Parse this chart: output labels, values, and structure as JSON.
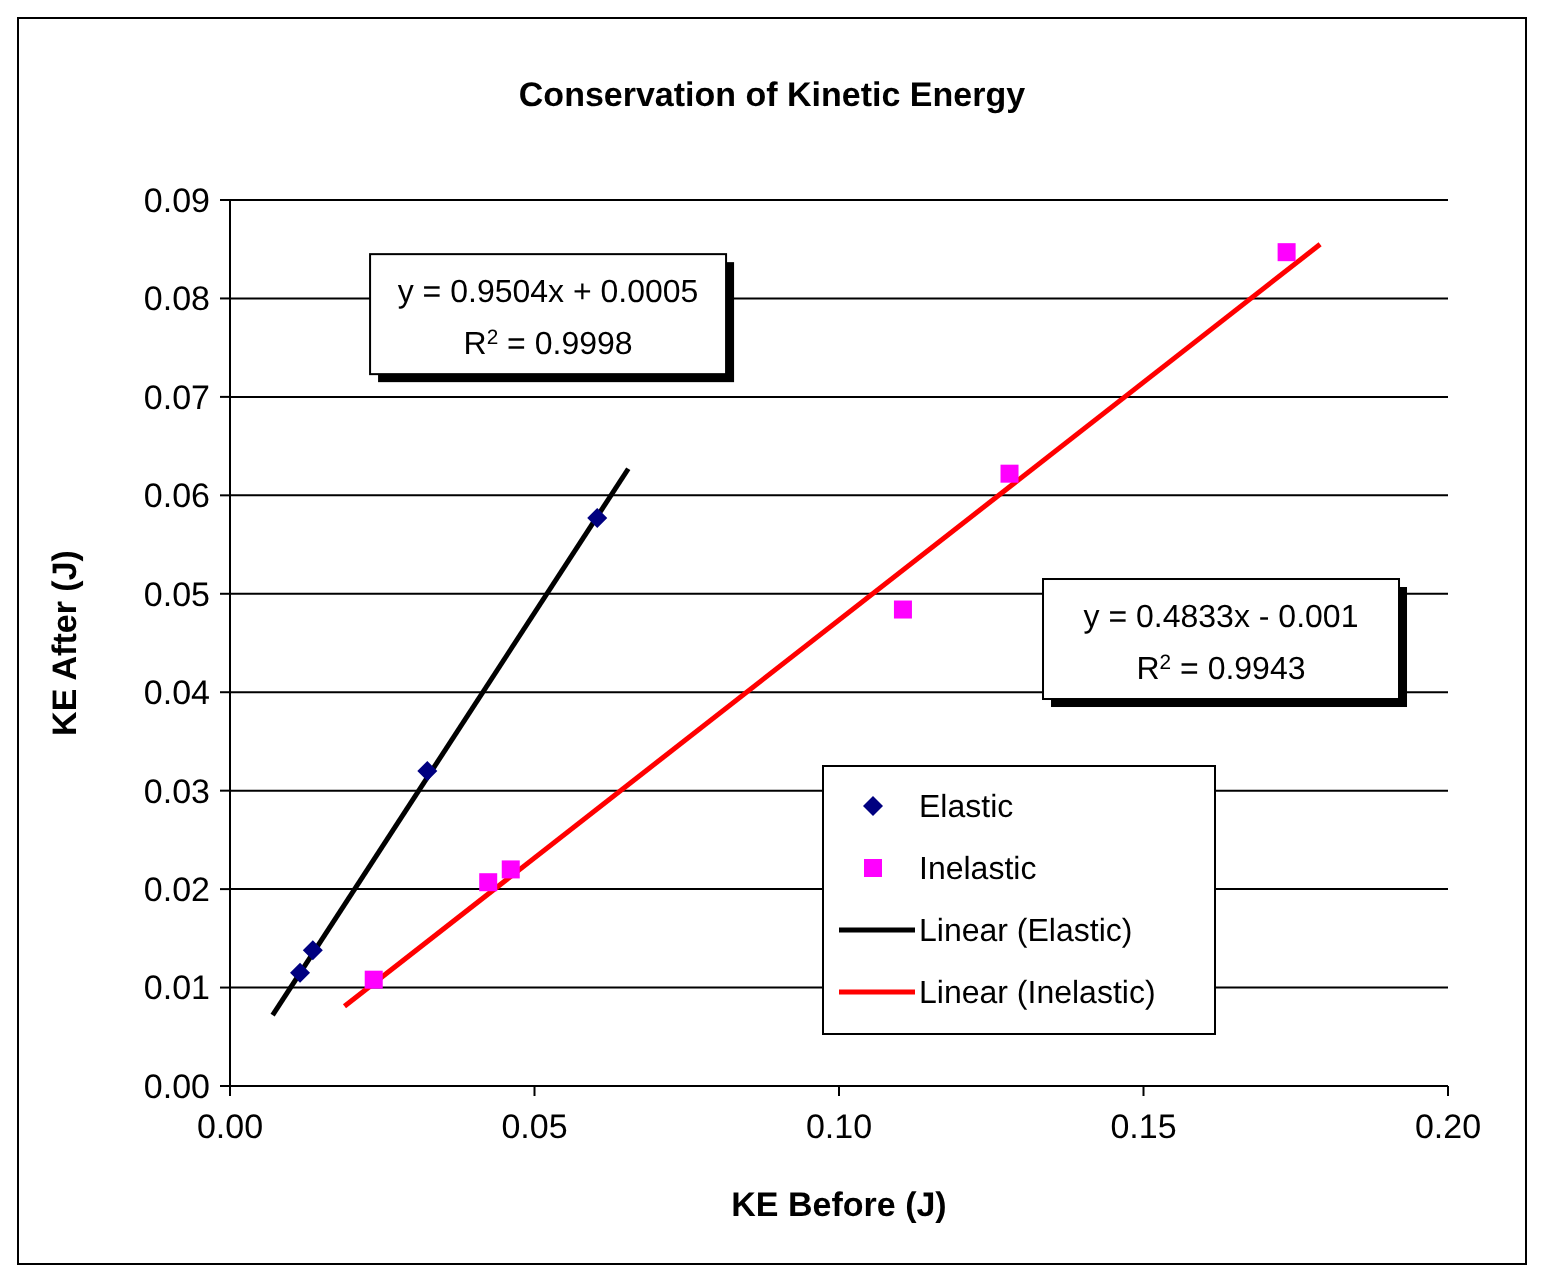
{
  "chart_data": {
    "type": "scatter",
    "title": "Conservation of Kinetic Energy",
    "xlabel": "KE Before (J)",
    "ylabel": "KE After (J)",
    "series": [
      {
        "name": "Elastic",
        "marker": "diamond",
        "color": "#000080",
        "x": [
          0.0115,
          0.0136,
          0.0324,
          0.0603
        ],
        "values": [
          0.0115,
          0.0138,
          0.032,
          0.0577
        ]
      },
      {
        "name": "Inelastic",
        "marker": "square",
        "color": "#ff00ff",
        "x": [
          0.0236,
          0.0424,
          0.0461,
          0.1105,
          0.128,
          0.1735
        ],
        "values": [
          0.0108,
          0.0207,
          0.022,
          0.0484,
          0.0622,
          0.0847
        ]
      },
      {
        "name": "Linear (Elastic)",
        "type": "line",
        "marker": "none",
        "color": "#000000",
        "x": [
          0.007,
          0.0654
        ],
        "values": [
          0.0072,
          0.0627
        ]
      },
      {
        "name": "Linear (Inelastic)",
        "type": "line",
        "marker": "none",
        "color": "#ff0000",
        "x": [
          0.0188,
          0.179
        ],
        "values": [
          0.0081,
          0.0855
        ]
      }
    ],
    "annotations": [
      "y = 0.9504x + 0.0005\nR$^{2}$ = 0.9998",
      "y = 0.4833x - 0.001\nR$^{2}$ = 0.9943"
    ],
    "xlim": [
      0,
      0.2
    ],
    "xticks": [
      {
        "value": 0,
        "label": "0.00"
      },
      {
        "value": 0.05,
        "label": "0.05"
      },
      {
        "value": 0.1,
        "label": "0.10"
      },
      {
        "value": 0.15,
        "label": "0.15"
      },
      {
        "value": 0.2,
        "label": "0.20"
      }
    ],
    "ylim": [
      0,
      0.09
    ],
    "yticks": [
      {
        "value": 0,
        "label": "0.00"
      },
      {
        "value": 0.01,
        "label": "0.01"
      },
      {
        "value": 0.02,
        "label": "0.02"
      },
      {
        "value": 0.03,
        "label": "0.03"
      },
      {
        "value": 0.04,
        "label": "0.04"
      },
      {
        "value": 0.05,
        "label": "0.05"
      },
      {
        "value": 0.06,
        "label": "0.06"
      },
      {
        "value": 0.07,
        "label": "0.07"
      },
      {
        "value": 0.08,
        "label": "0.08"
      },
      {
        "value": 0.09,
        "label": "0.09"
      }
    ],
    "grid": "y",
    "legend": "bottom right"
  }
}
